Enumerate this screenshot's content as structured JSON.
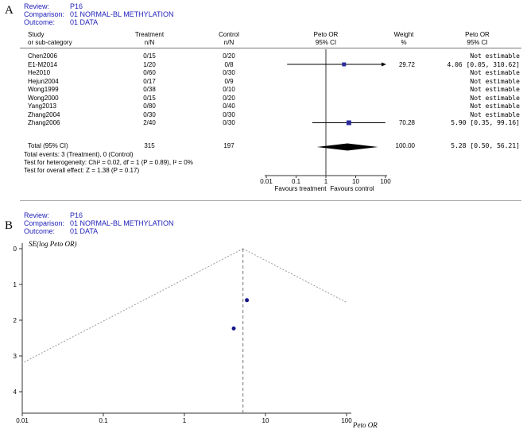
{
  "colors": {
    "header_blue": "#2222bb",
    "marker_blue": "#2b2b9c",
    "dot_blue": "#15158a"
  },
  "panelA": {
    "label": "A",
    "meta": {
      "review_label": "Review:",
      "review": "P16",
      "comparison_label": "Comparison:",
      "comparison": "01 NORMAL-BL METHYLATION",
      "outcome_label": "Outcome:",
      "outcome": "01 DATA"
    },
    "columns": [
      {
        "line1": "Study",
        "line2": "or sub-category"
      },
      {
        "line1": "Treatment",
        "line2": "n/N"
      },
      {
        "line1": "Control",
        "line2": "n/N"
      },
      {
        "line1": "Peto OR",
        "line2": "95% CI"
      },
      {
        "line1": "Weight",
        "line2": "%"
      },
      {
        "line1": "Peto OR",
        "line2": "95% CI"
      }
    ],
    "studies": [
      {
        "name": "Chen2006",
        "treatment": "0/15",
        "control": "0/20",
        "weight": "",
        "ci_text": "Not estimable"
      },
      {
        "name": "E1-M2014",
        "treatment": "1/20",
        "control": "0/8",
        "weight": "29.72",
        "ci_text": "4.06 [0.05, 310.62]"
      },
      {
        "name": "He2010",
        "treatment": "0/60",
        "control": "0/30",
        "weight": "",
        "ci_text": "Not estimable"
      },
      {
        "name": "Hejun2004",
        "treatment": "0/17",
        "control": "0/9",
        "weight": "",
        "ci_text": "Not estimable"
      },
      {
        "name": "Wong1999",
        "treatment": "0/38",
        "control": "0/10",
        "weight": "",
        "ci_text": "Not estimable"
      },
      {
        "name": "Wong2000",
        "treatment": "0/15",
        "control": "0/20",
        "weight": "",
        "ci_text": "Not estimable"
      },
      {
        "name": "Yang2013",
        "treatment": "0/80",
        "control": "0/40",
        "weight": "",
        "ci_text": "Not estimable"
      },
      {
        "name": "Zhang2004",
        "treatment": "0/30",
        "control": "0/30",
        "weight": "",
        "ci_text": "Not estimable"
      },
      {
        "name": "Zhang2006",
        "treatment": "2/40",
        "control": "0/30",
        "weight": "70.28",
        "ci_text": "5.90 [0.35, 99.16]"
      }
    ],
    "total": {
      "label": "Total (95% CI)",
      "treatment_n": "315",
      "control_n": "197",
      "weight": "100.00",
      "ci_text": "5.28 [0.50, 56.21]"
    },
    "footnotes": [
      "Total events: 3 (Treatment), 0 (Control)",
      "Test for heterogeneity: Chi² = 0.02, df = 1 (P = 0.89), I² = 0%",
      "Test for overall effect: Z = 1.38 (P = 0.17)"
    ],
    "favours_left": "Favours treatment",
    "favours_right": "Favours control"
  },
  "panelB": {
    "label": "B",
    "meta": {
      "review_label": "Review:",
      "review": "P16",
      "comparison_label": "Comparison:",
      "comparison": "01 NORMAL-BL METHYLATION",
      "outcome_label": "Outcome:",
      "outcome": "01 DATA"
    },
    "y_axis_label": "SE(log Peto OR)",
    "x_axis_label": "Peto OR"
  },
  "chart_data": [
    {
      "type": "scatter",
      "subtype": "forest-plot",
      "effect_measure": "Peto OR",
      "x_scale": "log",
      "x_ticks": [
        0.01,
        0.1,
        1,
        10,
        100
      ],
      "studies": [
        {
          "study": "Chen2006",
          "treatment_nN": "0/15",
          "control_nN": "0/20",
          "weight_pct": null,
          "peto_or": null,
          "ci": null,
          "note": "Not estimable"
        },
        {
          "study": "E1-M2014",
          "treatment_nN": "1/20",
          "control_nN": "0/8",
          "weight_pct": 29.72,
          "peto_or": 4.06,
          "ci": [
            0.05,
            310.62
          ]
        },
        {
          "study": "He2010",
          "treatment_nN": "0/60",
          "control_nN": "0/30",
          "weight_pct": null,
          "peto_or": null,
          "ci": null,
          "note": "Not estimable"
        },
        {
          "study": "Hejun2004",
          "treatment_nN": "0/17",
          "control_nN": "0/9",
          "weight_pct": null,
          "peto_or": null,
          "ci": null,
          "note": "Not estimable"
        },
        {
          "study": "Wong1999",
          "treatment_nN": "0/38",
          "control_nN": "0/10",
          "weight_pct": null,
          "peto_or": null,
          "ci": null,
          "note": "Not estimable"
        },
        {
          "study": "Wong2000",
          "treatment_nN": "0/15",
          "control_nN": "0/20",
          "weight_pct": null,
          "peto_or": null,
          "ci": null,
          "note": "Not estimable"
        },
        {
          "study": "Yang2013",
          "treatment_nN": "0/80",
          "control_nN": "0/40",
          "weight_pct": null,
          "peto_or": null,
          "ci": null,
          "note": "Not estimable"
        },
        {
          "study": "Zhang2004",
          "treatment_nN": "0/30",
          "control_nN": "0/30",
          "weight_pct": null,
          "peto_or": null,
          "ci": null,
          "note": "Not estimable"
        },
        {
          "study": "Zhang2006",
          "treatment_nN": "2/40",
          "control_nN": "0/30",
          "weight_pct": 70.28,
          "peto_or": 5.9,
          "ci": [
            0.35,
            99.16
          ]
        }
      ],
      "total": {
        "label": "Total (95% CI)",
        "treatment_N": 315,
        "control_N": 197,
        "weight_pct": 100.0,
        "peto_or": 5.28,
        "ci": [
          0.5,
          56.21
        ]
      }
    },
    {
      "type": "scatter",
      "subtype": "funnel-plot",
      "xlabel": "Peto OR",
      "ylabel": "SE(log Peto OR)",
      "x_scale": "log",
      "x_ticks": [
        0.01,
        0.1,
        1,
        10,
        100
      ],
      "y_ticks": [
        0,
        1,
        2,
        3,
        4
      ],
      "y_inverted": true,
      "pooled_or": 5.28,
      "points": [
        {
          "or": 4.06,
          "se": 2.23
        },
        {
          "or": 5.9,
          "se": 1.44
        }
      ]
    }
  ]
}
